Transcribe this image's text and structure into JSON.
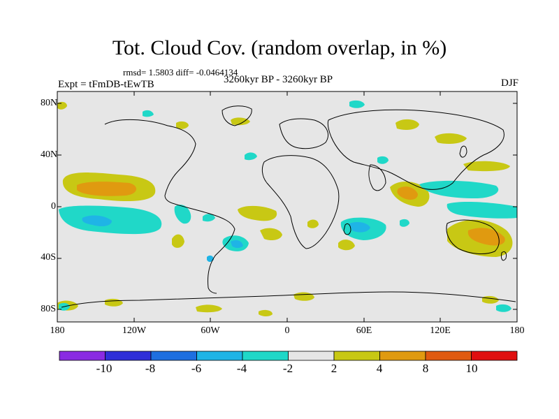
{
  "title": "Tot. Cloud Cov. (random overlap, in %)",
  "stats": "rmsd= 1.5803 diff= -0.0464134",
  "experiment": "Expt = tFmDB-tEwTB",
  "period": "3260kyr BP - 3260kyr BP",
  "season": "DJF",
  "lat_ticks": [
    "80N",
    "40N",
    "0",
    "40S",
    "80S"
  ],
  "lon_ticks": [
    "180",
    "120W",
    "60W",
    "0",
    "60E",
    "120E",
    "180"
  ],
  "colorbar": {
    "labels": [
      "-10",
      "-8",
      "-6",
      "-4",
      "-2",
      "2",
      "4",
      "8",
      "10"
    ],
    "colors": [
      "#8a2be2",
      "#2f2fd8",
      "#1e6fe0",
      "#1fb4e6",
      "#20d8c8",
      "#e6e6e6",
      "#c8c814",
      "#e09a10",
      "#e05a10",
      "#e01010"
    ]
  },
  "colors": {
    "background": "#e6e6e6",
    "level_2_4": "#c8c814",
    "level_4_8": "#e09a10",
    "level_m4_m2": "#20d8c8",
    "level_m6_m4": "#1fb4e6"
  }
}
